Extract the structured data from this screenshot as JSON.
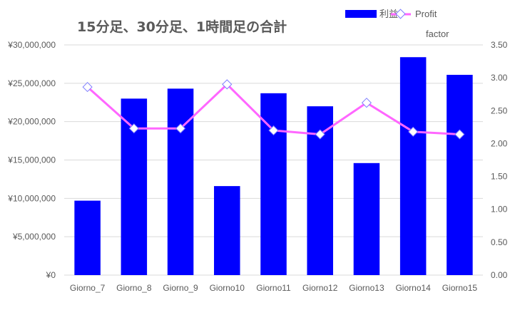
{
  "chart_data": {
    "type": "bar",
    "title": "15分足、30分足、1時間足の合計",
    "categories": [
      "Giorno_7",
      "Giorno_8",
      "Giorno_9",
      "Giorno10",
      "Giorno11",
      "Giorno12",
      "Giorno13",
      "Giorno14",
      "Giorno15"
    ],
    "series": [
      {
        "name": "利益",
        "type": "bar",
        "axis": "left",
        "color": "#0000ff",
        "values": [
          9700000,
          23000000,
          24300000,
          11600000,
          23700000,
          22000000,
          14600000,
          28400000,
          26100000
        ]
      },
      {
        "name": "Profit factor",
        "type": "line",
        "axis": "right",
        "color": "#ff66ff",
        "values": [
          2.86,
          2.23,
          2.23,
          2.9,
          2.2,
          2.14,
          2.62,
          2.18,
          2.14
        ]
      }
    ],
    "y_left": {
      "ylim": [
        0,
        30000000
      ],
      "ticks": [
        0,
        5000000,
        10000000,
        15000000,
        20000000,
        25000000,
        30000000
      ],
      "tick_labels": [
        "¥0",
        "¥5,000,000",
        "¥10,000,000",
        "¥15,000,000",
        "¥20,000,000",
        "¥25,000,000",
        "¥30,000,000"
      ]
    },
    "y_right": {
      "ylim": [
        0,
        3.5
      ],
      "ticks": [
        0,
        0.5,
        1,
        1.5,
        2,
        2.5,
        3,
        3.5
      ],
      "tick_labels": [
        "0.00",
        "0.50",
        "1.00",
        "1.50",
        "2.00",
        "2.50",
        "3.00",
        "3.50"
      ]
    },
    "legend": {
      "placement": "top-right",
      "entries": [
        {
          "label": "利益",
          "line2": ""
        },
        {
          "label": "Profit",
          "line2": "factor"
        }
      ]
    },
    "grid": true
  }
}
